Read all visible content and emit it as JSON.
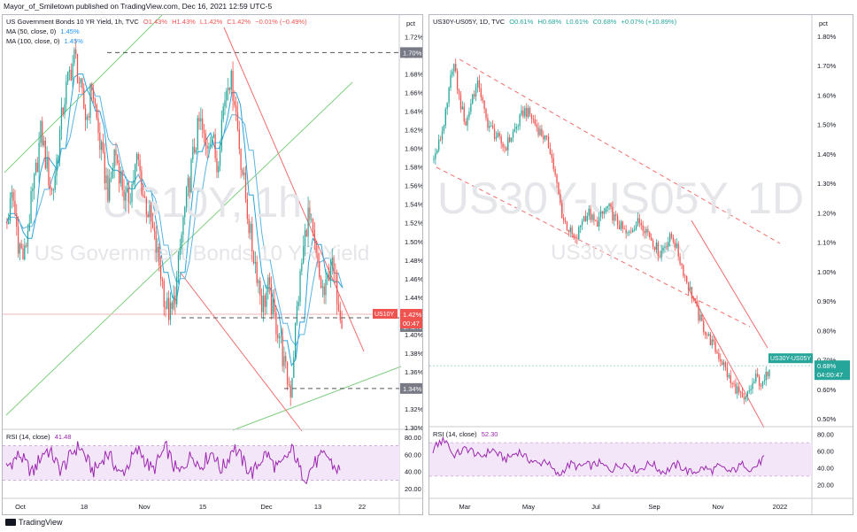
{
  "header": {
    "publisher": "Mayor_of_Smiletown published on TradingView.com, Dec 16, 2021 12:59 UTC-5"
  },
  "footer": {
    "brand": "TradingView"
  },
  "colors": {
    "up": "#26a69a",
    "down": "#ef5350",
    "rsi": "#9c27b0",
    "ma": "#29a3d8",
    "channel_red": "#f26d6d",
    "channel_green": "#7fcf7f"
  },
  "chart_data": [
    {
      "type": "candlestick",
      "symbol": "US10Y",
      "title": "US Government Bonds 10 YR Yield, 1h, TVC",
      "ohlc": {
        "o": "O1.43%",
        "h": "H1.43%",
        "l": "L1.42%",
        "c": "C1.42%",
        "chg": "−0.01% (−0.49%)"
      },
      "watermark": {
        "symbol": "US10Y, 1h",
        "name": "US Government Bonds 10 YR Yield"
      },
      "indicators": [
        {
          "label": "MA (50, close, 0)",
          "value": "1.45%"
        },
        {
          "label": "MA (100, close, 0)",
          "value": "1.45%"
        }
      ],
      "price_unit": "pct",
      "y_ticks": [
        "1.72%",
        "1.70%",
        "1.68%",
        "1.66%",
        "1.64%",
        "1.62%",
        "1.60%",
        "1.58%",
        "1.56%",
        "1.54%",
        "1.52%",
        "1.50%",
        "1.48%",
        "1.46%",
        "1.44%",
        "1.42%",
        "1.40%",
        "1.38%",
        "1.36%",
        "1.34%",
        "1.32%",
        "1.30%"
      ],
      "ylim": [
        1.3,
        1.73
      ],
      "x_ticks": [
        "Oct",
        "18",
        "Nov",
        "15",
        "Dec",
        "13",
        "22"
      ],
      "marks": {
        "high_label": "1.70%",
        "low_label": "1.34%",
        "support_label": "1.42%",
        "last_symbol": "US10Y",
        "last_price": "1.42%",
        "countdown": "00:47"
      },
      "key_levels": {
        "high": 1.703,
        "low": 1.342,
        "support": 1.418,
        "last": 1.42
      },
      "path_points": [
        1.52,
        1.55,
        1.5,
        1.48,
        1.53,
        1.57,
        1.62,
        1.58,
        1.55,
        1.6,
        1.65,
        1.68,
        1.7,
        1.66,
        1.63,
        1.67,
        1.62,
        1.58,
        1.55,
        1.6,
        1.57,
        1.54,
        1.56,
        1.59,
        1.55,
        1.53,
        1.5,
        1.47,
        1.43,
        1.42,
        1.46,
        1.52,
        1.56,
        1.6,
        1.63,
        1.6,
        1.62,
        1.58,
        1.64,
        1.68,
        1.66,
        1.6,
        1.55,
        1.5,
        1.47,
        1.43,
        1.45,
        1.42,
        1.4,
        1.36,
        1.34,
        1.42,
        1.48,
        1.53,
        1.5,
        1.46,
        1.44,
        1.48,
        1.45,
        1.42
      ],
      "rsi": {
        "label": "RSI (14, close)",
        "value": "41.48",
        "y_ticks": [
          "80.00",
          "60.00",
          "40.00",
          "20.00"
        ],
        "values": [
          45,
          52,
          60,
          48,
          38,
          55,
          66,
          58,
          42,
          50,
          63,
          70,
          55,
          40,
          48,
          62,
          52,
          36,
          44,
          58,
          65,
          50,
          41,
          56,
          68,
          47,
          38,
          52,
          60,
          45,
          55,
          64,
          42,
          50,
          70,
          58,
          45,
          38,
          52,
          62,
          48,
          44,
          57,
          66,
          40,
          34,
          48,
          55,
          60,
          46,
          41
        ]
      }
    },
    {
      "type": "candlestick",
      "symbol": "US30Y-US05Y",
      "title": "US30Y-US05Y, 1D, TVC",
      "ohlc": {
        "o": "O0.61%",
        "h": "H0.68%",
        "l": "L0.61%",
        "c": "C0.68%",
        "chg": "+0.07% (+10.89%)"
      },
      "watermark": {
        "symbol": "US30Y-US05Y, 1D",
        "name": "US30Y-US05Y"
      },
      "price_unit": "pct",
      "y_ticks": [
        "1.80%",
        "1.70%",
        "1.60%",
        "1.50%",
        "1.40%",
        "1.30%",
        "1.20%",
        "1.10%",
        "1.00%",
        "0.90%",
        "0.80%",
        "0.70%",
        "0.60%",
        "0.50%"
      ],
      "ylim": [
        0.47,
        1.83
      ],
      "x_ticks": [
        "Mar",
        "May",
        "Jul",
        "Sep",
        "Nov",
        "2022"
      ],
      "marks": {
        "last_symbol": "US30Y-US05Y",
        "last_price": "0.68%",
        "countdown": "04:00:47"
      },
      "key_levels": {
        "last": 0.68
      },
      "path_points": [
        1.38,
        1.45,
        1.55,
        1.72,
        1.58,
        1.5,
        1.6,
        1.64,
        1.52,
        1.48,
        1.45,
        1.42,
        1.46,
        1.5,
        1.55,
        1.53,
        1.49,
        1.46,
        1.42,
        1.3,
        1.18,
        1.14,
        1.1,
        1.18,
        1.2,
        1.16,
        1.19,
        1.22,
        1.18,
        1.15,
        1.12,
        1.16,
        1.17,
        1.14,
        1.1,
        1.06,
        1.1,
        1.12,
        1.05,
        0.98,
        0.92,
        0.85,
        0.8,
        0.76,
        0.72,
        0.68,
        0.62,
        0.6,
        0.55,
        0.6,
        0.64,
        0.61,
        0.68
      ],
      "rsi": {
        "label": "RSI (14, close)",
        "value": "52.30",
        "y_ticks": [
          "80.00",
          "60.00",
          "40.00",
          "20.00"
        ],
        "values": [
          62,
          70,
          74,
          55,
          58,
          63,
          60,
          52,
          57,
          62,
          55,
          50,
          55,
          60,
          52,
          48,
          44,
          50,
          38,
          30,
          40,
          45,
          40,
          44,
          42,
          46,
          41,
          38,
          43,
          45,
          40,
          37,
          42,
          46,
          38,
          35,
          40,
          44,
          38,
          34,
          37,
          40,
          36,
          41,
          38,
          35,
          40,
          45,
          38,
          43,
          52
        ]
      }
    }
  ]
}
